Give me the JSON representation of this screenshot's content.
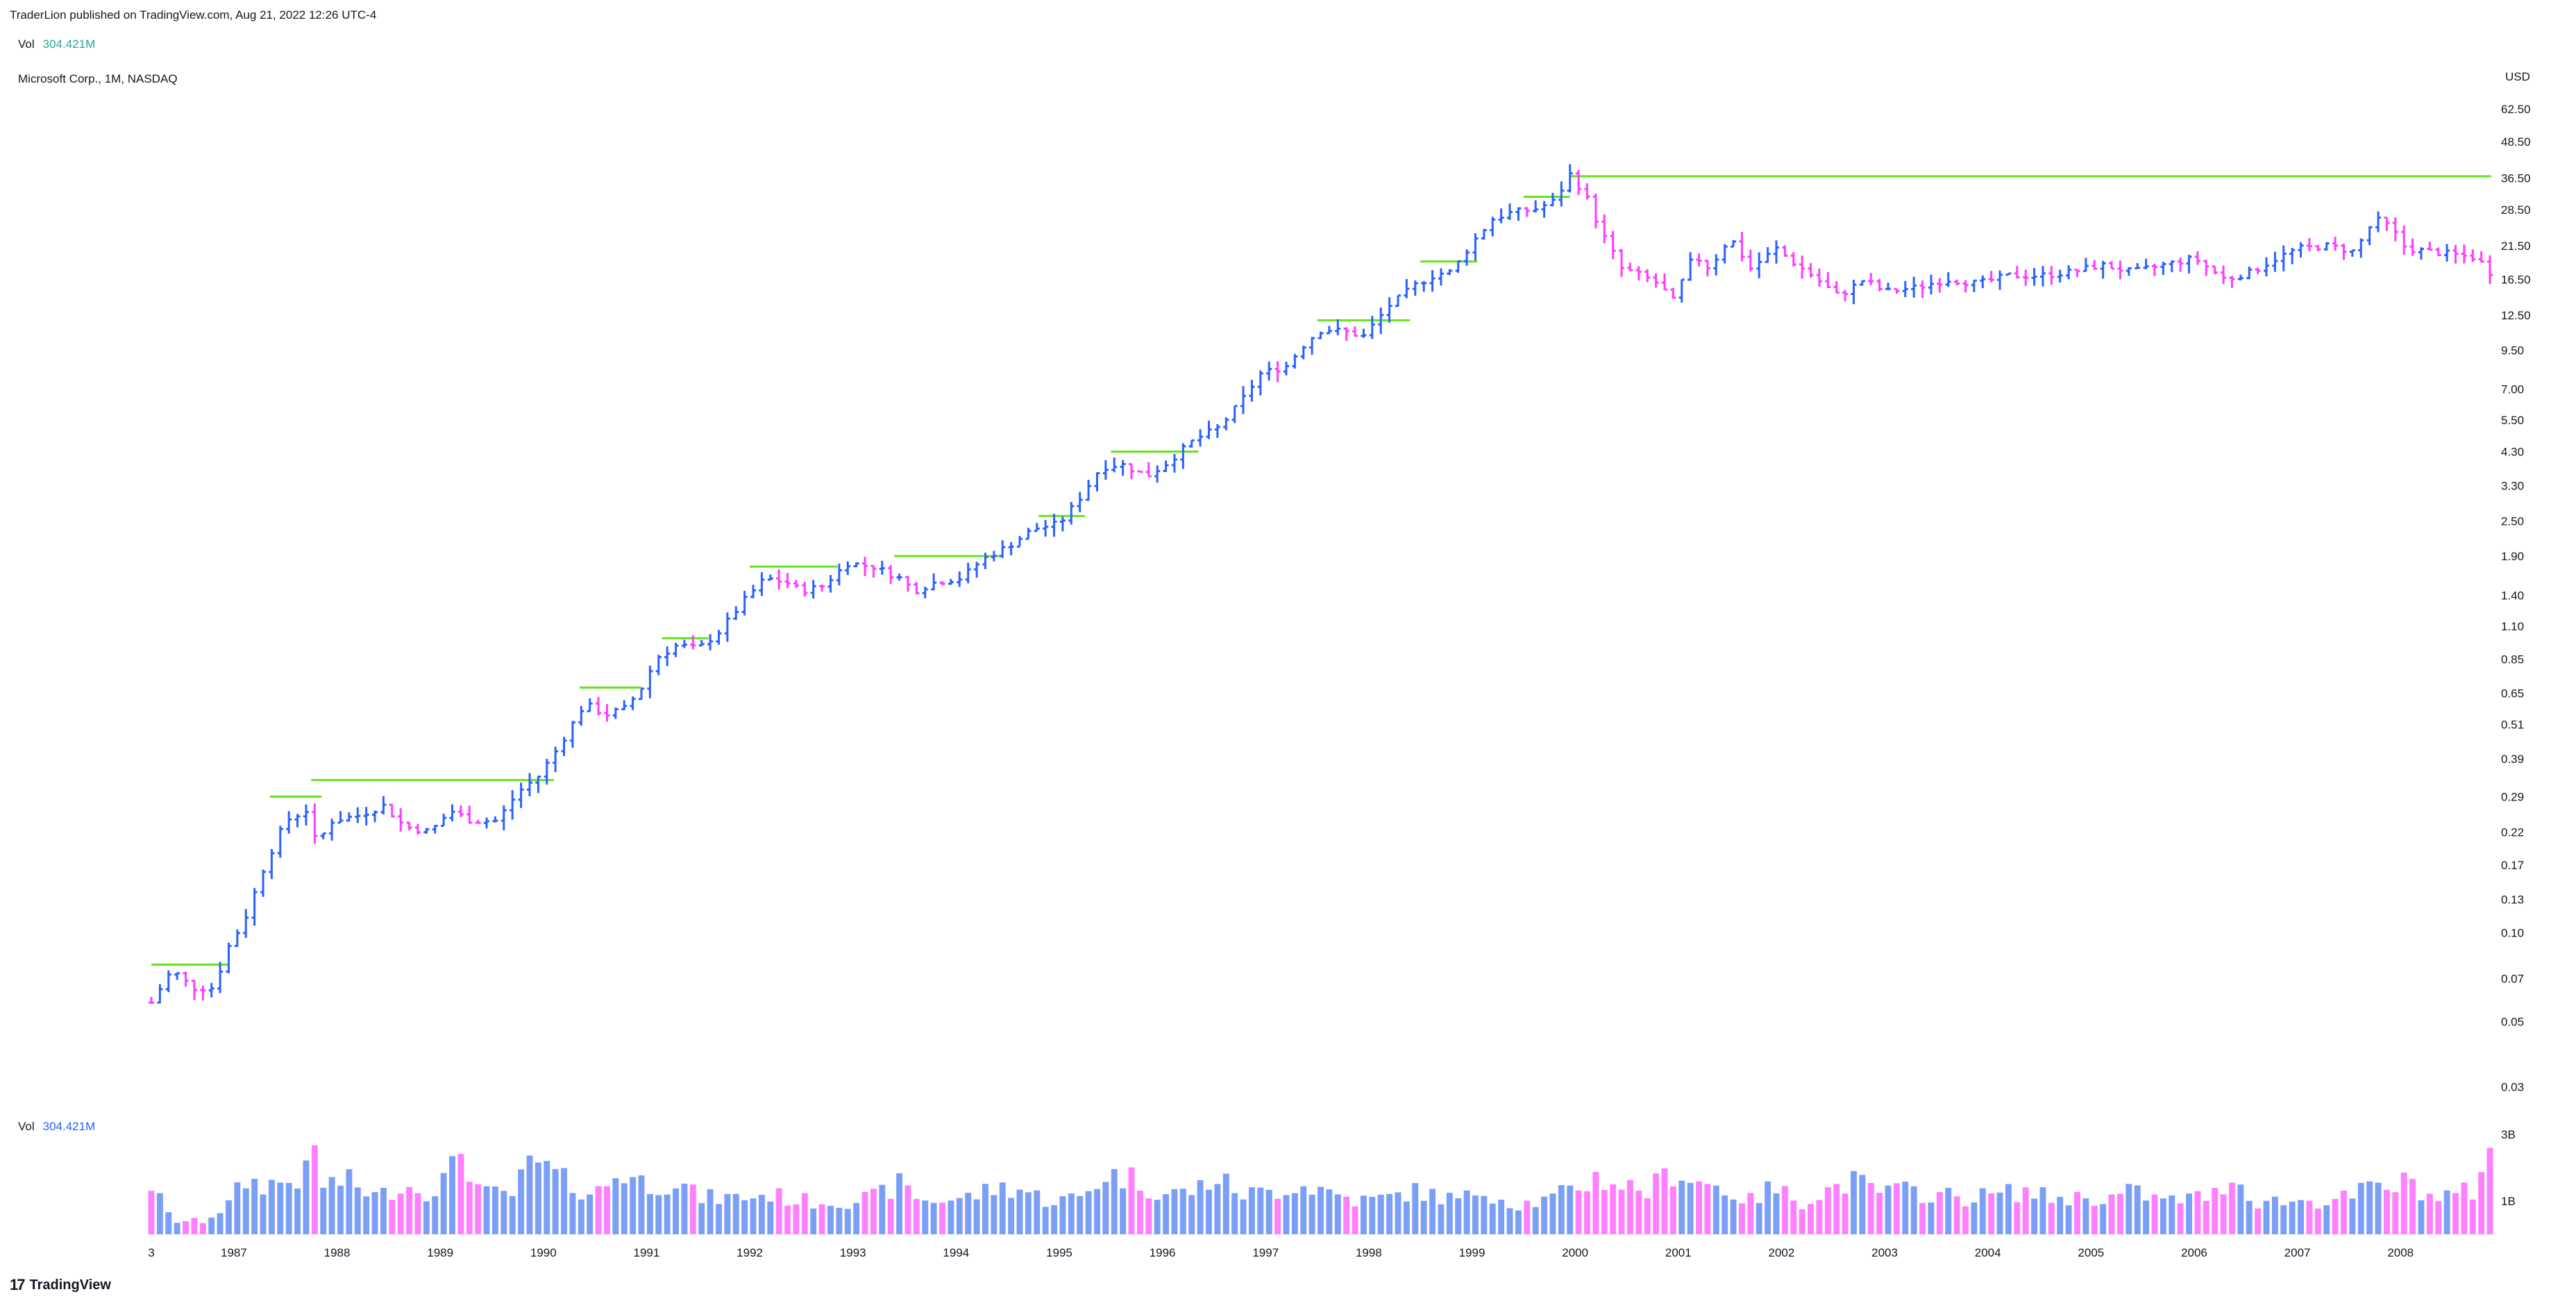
{
  "header": {
    "published": "TraderLion published on TradingView.com, Aug 21, 2022 12:26 UTC-4",
    "vol_label": "Vol",
    "vol_value": "304.421M",
    "symbol": "Microsoft Corp., 1M, NASDAQ"
  },
  "volume_pane": {
    "label": "Vol",
    "value": "304.421M"
  },
  "footer": {
    "brand": "TradingView",
    "brand_mark": "17"
  },
  "colors": {
    "up": "#2962ff",
    "down": "#ff3cff",
    "vol_up": "#7b9ff7",
    "vol_down": "#ff80ff",
    "resistance": "#66e21e",
    "text": "#131722"
  },
  "chart_data": {
    "type": "ohlc",
    "title": "",
    "currency": "USD",
    "scale": "log",
    "ylim": [
      0.027,
      90
    ],
    "y_ticks": [
      "62.50",
      "48.50",
      "36.50",
      "28.50",
      "21.50",
      "16.50",
      "12.50",
      "9.50",
      "7.00",
      "5.50",
      "4.30",
      "3.30",
      "2.50",
      "1.90",
      "1.40",
      "1.10",
      "0.85",
      "0.65",
      "0.51",
      "0.39",
      "0.29",
      "0.22",
      "0.17",
      "0.13",
      "0.10",
      "0.07",
      "0.05",
      "0.03"
    ],
    "x_range": [
      1986.2,
      2008.9
    ],
    "x_ticks": [
      "3",
      "1987",
      "1988",
      "1989",
      "1990",
      "1991",
      "1992",
      "1993",
      "1994",
      "1995",
      "1996",
      "1997",
      "1998",
      "1999",
      "2000",
      "2001",
      "2002",
      "2003",
      "2004",
      "2005",
      "2006",
      "2007",
      "2008"
    ],
    "volume_ticks": [
      "3B",
      "1B"
    ],
    "volume_ylim": [
      0,
      3.4
    ],
    "close_anchors": [
      [
        1986.2,
        0.058
      ],
      [
        1986.4,
        0.075
      ],
      [
        1986.6,
        0.065
      ],
      [
        1986.8,
        0.065
      ],
      [
        1986.95,
        0.09
      ],
      [
        1987.1,
        0.11
      ],
      [
        1987.3,
        0.17
      ],
      [
        1987.5,
        0.24
      ],
      [
        1987.7,
        0.26
      ],
      [
        1987.8,
        0.2
      ],
      [
        1987.95,
        0.24
      ],
      [
        1988.2,
        0.25
      ],
      [
        1988.45,
        0.27
      ],
      [
        1988.65,
        0.23
      ],
      [
        1988.9,
        0.22
      ],
      [
        1989.1,
        0.26
      ],
      [
        1989.3,
        0.24
      ],
      [
        1989.55,
        0.24
      ],
      [
        1989.75,
        0.3
      ],
      [
        1989.95,
        0.34
      ],
      [
        1990.15,
        0.43
      ],
      [
        1990.4,
        0.6
      ],
      [
        1990.6,
        0.55
      ],
      [
        1990.8,
        0.58
      ],
      [
        1990.95,
        0.68
      ],
      [
        1991.1,
        0.86
      ],
      [
        1991.3,
        0.95
      ],
      [
        1991.5,
        0.92
      ],
      [
        1991.7,
        1.05
      ],
      [
        1991.95,
        1.35
      ],
      [
        1992.15,
        1.6
      ],
      [
        1992.35,
        1.55
      ],
      [
        1992.5,
        1.45
      ],
      [
        1992.7,
        1.5
      ],
      [
        1992.95,
        1.8
      ],
      [
        1993.2,
        1.75
      ],
      [
        1993.45,
        1.6
      ],
      [
        1993.6,
        1.45
      ],
      [
        1993.8,
        1.55
      ],
      [
        1994.05,
        1.6
      ],
      [
        1994.25,
        1.85
      ],
      [
        1994.5,
        2.05
      ],
      [
        1994.75,
        2.35
      ],
      [
        1995.0,
        2.45
      ],
      [
        1995.2,
        3.0
      ],
      [
        1995.4,
        3.8
      ],
      [
        1995.6,
        3.9
      ],
      [
        1995.85,
        3.55
      ],
      [
        1996.05,
        3.95
      ],
      [
        1996.3,
        4.7
      ],
      [
        1996.55,
        5.2
      ],
      [
        1996.75,
        6.3
      ],
      [
        1996.95,
        7.9
      ],
      [
        1997.2,
        8.4
      ],
      [
        1997.4,
        10.2
      ],
      [
        1997.55,
        11.2
      ],
      [
        1997.75,
        11.0
      ],
      [
        1997.95,
        10.6
      ],
      [
        1998.2,
        13.5
      ],
      [
        1998.45,
        15.8
      ],
      [
        1998.65,
        17.2
      ],
      [
        1998.8,
        17.5
      ],
      [
        1999.0,
        22.0
      ],
      [
        1999.2,
        26.5
      ],
      [
        1999.4,
        28.0
      ],
      [
        1999.6,
        28.5
      ],
      [
        1999.8,
        30.5
      ],
      [
        1999.95,
        37.5
      ],
      [
        2000.1,
        32.0
      ],
      [
        2000.25,
        24.0
      ],
      [
        2000.45,
        18.0
      ],
      [
        2000.65,
        17.0
      ],
      [
        2000.8,
        16.0
      ],
      [
        2000.95,
        14.0
      ],
      [
        2001.15,
        20.0
      ],
      [
        2001.3,
        18.0
      ],
      [
        2001.5,
        23.0
      ],
      [
        2001.7,
        18.0
      ],
      [
        2001.95,
        21.0
      ],
      [
        2002.1,
        19.0
      ],
      [
        2002.3,
        17.0
      ],
      [
        2002.55,
        14.5
      ],
      [
        2002.8,
        16.5
      ],
      [
        2003.0,
        15.0
      ],
      [
        2003.3,
        15.5
      ],
      [
        2003.6,
        16.5
      ],
      [
        2003.9,
        16.0
      ],
      [
        2004.2,
        17.0
      ],
      [
        2004.5,
        17.0
      ],
      [
        2004.8,
        17.5
      ],
      [
        2005.1,
        18.5
      ],
      [
        2005.4,
        17.5
      ],
      [
        2005.7,
        18.5
      ],
      [
        2006.0,
        19.5
      ],
      [
        2006.3,
        16.5
      ],
      [
        2006.55,
        17.5
      ],
      [
        2006.8,
        19.5
      ],
      [
        2007.0,
        21.0
      ],
      [
        2007.3,
        21.5
      ],
      [
        2007.55,
        20.5
      ],
      [
        2007.75,
        26.5
      ],
      [
        2007.9,
        25.0
      ],
      [
        2008.05,
        21.0
      ],
      [
        2008.3,
        20.5
      ],
      [
        2008.55,
        20.0
      ],
      [
        2008.75,
        19.5
      ],
      [
        2008.85,
        17.5
      ]
    ],
    "resistance_lines": [
      {
        "x0": 1986.2,
        "x1": 1986.95,
        "y": 0.078
      },
      {
        "x0": 1987.35,
        "x1": 1987.85,
        "y": 0.29
      },
      {
        "x0": 1987.75,
        "x1": 1990.1,
        "y": 0.33
      },
      {
        "x0": 1990.35,
        "x1": 1990.95,
        "y": 0.68
      },
      {
        "x0": 1991.15,
        "x1": 1991.6,
        "y": 1.0
      },
      {
        "x0": 1992.0,
        "x1": 1992.85,
        "y": 1.75
      },
      {
        "x0": 1993.4,
        "x1": 1994.45,
        "y": 1.9
      },
      {
        "x0": 1994.8,
        "x1": 1995.25,
        "y": 2.6
      },
      {
        "x0": 1995.5,
        "x1": 1996.35,
        "y": 4.3
      },
      {
        "x0": 1997.5,
        "x1": 1998.4,
        "y": 12.0
      },
      {
        "x0": 1998.5,
        "x1": 1999.05,
        "y": 19.0
      },
      {
        "x0": 1999.5,
        "x1": 1999.95,
        "y": 31.5
      },
      {
        "x0": 1999.95,
        "x1": 2008.88,
        "y": 37.0
      }
    ],
    "volume_anchors": [
      [
        1986.2,
        1.5
      ],
      [
        1986.4,
        0.4
      ],
      [
        1986.7,
        0.4
      ],
      [
        1986.95,
        0.9
      ],
      [
        1987.1,
        1.6
      ],
      [
        1987.3,
        1.5
      ],
      [
        1987.55,
        1.6
      ],
      [
        1987.7,
        1.8
      ],
      [
        1987.75,
        3.0
      ],
      [
        1987.85,
        1.5
      ],
      [
        1988.1,
        1.6
      ],
      [
        1988.4,
        1.1
      ],
      [
        1988.6,
        1.5
      ],
      [
        1988.9,
        1.3
      ],
      [
        1989.1,
        1.8
      ],
      [
        1989.2,
        2.6
      ],
      [
        1989.4,
        1.2
      ],
      [
        1989.7,
        1.2
      ],
      [
        1989.9,
        2.2
      ],
      [
        1990.2,
        1.6
      ],
      [
        1990.5,
        1.2
      ],
      [
        1990.75,
        1.9
      ],
      [
        1991.0,
        1.5
      ],
      [
        1991.3,
        1.6
      ],
      [
        1991.5,
        1.1
      ],
      [
        1991.9,
        1.1
      ],
      [
        1992.2,
        1.2
      ],
      [
        1992.5,
        1.0
      ],
      [
        1992.9,
        1.0
      ],
      [
        1993.2,
        1.1
      ],
      [
        1993.45,
        1.5
      ],
      [
        1993.7,
        1.0
      ],
      [
        1994.1,
        1.1
      ],
      [
        1994.4,
        1.4
      ],
      [
        1994.6,
        1.4
      ],
      [
        1994.9,
        1.0
      ],
      [
        1995.2,
        1.1
      ],
      [
        1995.45,
        1.8
      ],
      [
        1995.7,
        1.7
      ],
      [
        1996.0,
        1.2
      ],
      [
        1996.3,
        1.3
      ],
      [
        1996.5,
        1.7
      ],
      [
        1996.8,
        1.2
      ],
      [
        1997.1,
        1.3
      ],
      [
        1997.25,
        1.5
      ],
      [
        1997.5,
        1.4
      ],
      [
        1997.7,
        1.2
      ],
      [
        1997.9,
        1.0
      ],
      [
        1998.2,
        1.1
      ],
      [
        1998.4,
        1.3
      ],
      [
        1998.6,
        1.2
      ],
      [
        1998.9,
        1.0
      ],
      [
        1999.1,
        1.4
      ],
      [
        1999.4,
        0.9
      ],
      [
        1999.7,
        1.0
      ],
      [
        1999.95,
        1.3
      ],
      [
        2000.2,
        1.7
      ],
      [
        2000.45,
        1.5
      ],
      [
        2000.7,
        1.3
      ],
      [
        2000.95,
        1.9
      ],
      [
        2001.2,
        1.6
      ],
      [
        2001.4,
        1.4
      ],
      [
        2001.7,
        1.0
      ],
      [
        2001.9,
        1.4
      ],
      [
        2002.2,
        1.0
      ],
      [
        2002.5,
        1.4
      ],
      [
        2002.7,
        1.6
      ],
      [
        2002.9,
        1.3
      ],
      [
        2003.2,
        1.3
      ],
      [
        2003.5,
        1.2
      ],
      [
        2003.8,
        1.1
      ],
      [
        2004.1,
        1.2
      ],
      [
        2004.35,
        1.3
      ],
      [
        2004.6,
        1.1
      ],
      [
        2004.9,
        1.1
      ],
      [
        2005.2,
        1.1
      ],
      [
        2005.4,
        1.3
      ],
      [
        2005.7,
        1.0
      ],
      [
        2006.0,
        1.1
      ],
      [
        2006.2,
        1.2
      ],
      [
        2006.35,
        1.8
      ],
      [
        2006.6,
        1.0
      ],
      [
        2006.9,
        1.0
      ],
      [
        2007.2,
        1.0
      ],
      [
        2007.5,
        1.1
      ],
      [
        2007.7,
        1.4
      ],
      [
        2007.9,
        1.4
      ],
      [
        2008.1,
        1.6
      ],
      [
        2008.3,
        1.1
      ],
      [
        2008.5,
        1.2
      ],
      [
        2008.7,
        1.3
      ],
      [
        2008.85,
        2.7
      ]
    ]
  }
}
